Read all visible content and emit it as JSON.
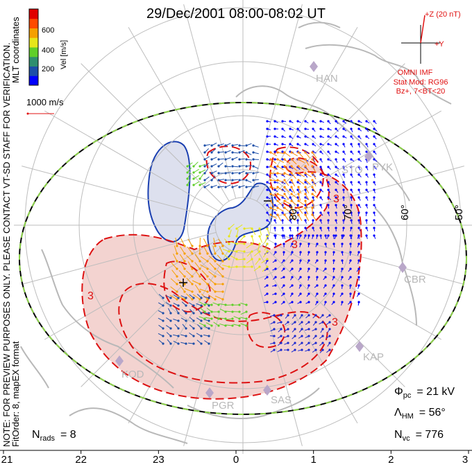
{
  "title": "29/Dec/2001 08:00-08:02 UT",
  "colorbar": {
    "label": "Vel [m/s]",
    "ticks": [
      "600",
      "400",
      "200"
    ],
    "colors": [
      "#0000ff",
      "#1d4fa8",
      "#2e8f6f",
      "#5fcf2a",
      "#e6e61a",
      "#f5a000",
      "#ff4a00",
      "#e00000"
    ]
  },
  "side_labels": {
    "coords": "MLT coordinates",
    "note": "NOTE: FOR PREVIEW PURPOSES ONLY. PLEASE CONTACT VT-SD STAFF FOR VERIFICATION.",
    "fitorder": "FitOrder: 8, mapEX format"
  },
  "scale_label": "1000 m/s",
  "imf": {
    "z_label": "+Z (20 nT)",
    "y_label": "+Y",
    "omni": "OMNI IMF",
    "stat_mod": "Stat Mod: RG96",
    "bz": "Bz+, 7<BT<20"
  },
  "stations": [
    "HAN",
    "STO",
    "PYK",
    "CBR",
    "KAP",
    "SAS",
    "PGR",
    "KOD"
  ],
  "lat_labels": [
    "80°",
    "70°",
    "60°",
    "50°"
  ],
  "contour_labels": [
    "3",
    "3",
    "3",
    "3"
  ],
  "mlt_ticks": [
    "21",
    "22",
    "23",
    "0",
    "1",
    "2",
    "3"
  ],
  "stats": {
    "phi_sym": "Φ",
    "phi_sub": "pc",
    "phi_val": "= 21 kV",
    "lam_sym": "Λ",
    "lam_sub": "HM",
    "lam_val": "= 56°",
    "nvc_sym": "N",
    "nvc_sub": "vc",
    "nvc_val": "= 776",
    "nrads_sym": "N",
    "nrads_sub": "rads",
    "nrads_val": "= 8"
  },
  "colors": {
    "positive_cell": "#f3d3d0",
    "negative_cell": "#dde0ee",
    "positive_contour": "#dd1111",
    "negative_contour": "#1a3fb0",
    "grid": "#bdbdbd",
    "coast": "#b8b8b8",
    "boundary_green": "#8ed44b",
    "annotation_red": "#e01010"
  }
}
